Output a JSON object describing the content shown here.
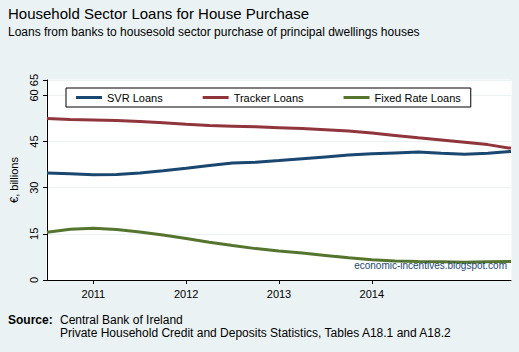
{
  "chart_data": {
    "type": "line",
    "title": "Household Sector Loans for House Purchase",
    "subtitle": "Loans from banks to housesold sector purchase of principal dwellings houses",
    "y_label": "€, billions",
    "categories": [
      null,
      null,
      "2011",
      null,
      null,
      null,
      "2012",
      null,
      null,
      null,
      "2013",
      null,
      null,
      null,
      "2014",
      null,
      null,
      null,
      null,
      null,
      null
    ],
    "series": [
      {
        "name": "SVR Loans",
        "color": "#1a476f",
        "values": [
          34.8,
          34.5,
          34.2,
          34.3,
          34.8,
          35.5,
          36.3,
          37.2,
          38.0,
          38.3,
          38.8,
          39.4,
          40.0,
          40.6,
          41.0,
          41.3,
          41.6,
          41.2,
          40.9,
          41.2,
          41.8
        ]
      },
      {
        "name": "Tracker Loans",
        "color": "#90353b",
        "values": [
          52.5,
          52.2,
          52.0,
          51.8,
          51.5,
          51.1,
          50.6,
          50.2,
          50.0,
          49.8,
          49.5,
          49.2,
          48.8,
          48.4,
          47.8,
          47.0,
          46.2,
          45.5,
          44.8,
          44.0,
          42.8
        ]
      },
      {
        "name": "Fixed Rate Loans",
        "color": "#55752f",
        "values": [
          15.5,
          16.5,
          16.8,
          16.4,
          15.6,
          14.6,
          13.5,
          12.3,
          11.2,
          10.2,
          9.4,
          8.8,
          8.0,
          7.2,
          6.6,
          6.2,
          6.0,
          5.9,
          5.8,
          5.9,
          6.0
        ]
      }
    ],
    "ylim": [
      0,
      65
    ],
    "yticks": [
      0,
      15,
      30,
      45,
      60
    ],
    "grid": true,
    "legend": "top",
    "source": {
      "label": "Source:",
      "lines": [
        "Central Bank of Ireland",
        "Private Household Credit and Deposits Statistics, Tables A18.1 and A18.2"
      ]
    },
    "watermark": "economic-incentives.blogspot.com"
  }
}
